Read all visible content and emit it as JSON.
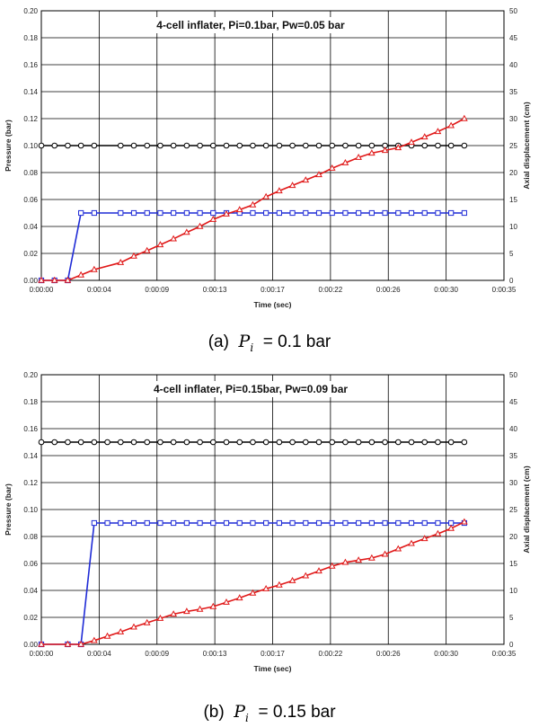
{
  "chart_data": [
    {
      "type": "line",
      "title": "4-cell inflater, Pi=0.1bar, Pw=0.05 bar",
      "xlabel": "Time (sec)",
      "ylabel": "Pressure (bar)",
      "y2label": "Axial displacement (cm)",
      "x_ticks": [
        "0:00:00",
        "0:00:04",
        "0:00:09",
        "0:00:13",
        "0:00:17",
        "0:00:22",
        "0:00:26",
        "0:00:30",
        "0:00:35"
      ],
      "y_ticks": [
        "0.00",
        "0.02",
        "0.04",
        "0.06",
        "0.08",
        "0.10",
        "0.12",
        "0.14",
        "0.16",
        "0.18",
        "0.20"
      ],
      "y2_ticks": [
        "0",
        "5",
        "10",
        "15",
        "20",
        "25",
        "30",
        "35",
        "40",
        "45",
        "50"
      ],
      "xlim": [
        0,
        35
      ],
      "ylim": [
        0,
        0.2
      ],
      "y2lim": [
        0,
        50
      ],
      "grid": true,
      "series": [
        {
          "color": "#000000",
          "marker": "circle",
          "axis": "left",
          "x": [
            0,
            1,
            2,
            3,
            4,
            6,
            7,
            8,
            9,
            10,
            11,
            12,
            13,
            14,
            15,
            16,
            17,
            18,
            19,
            20,
            21,
            22,
            23,
            24,
            25,
            26,
            27,
            28,
            29,
            30,
            31,
            32
          ],
          "y": [
            0.1,
            0.1,
            0.1,
            0.1,
            0.1,
            0.1,
            0.1,
            0.1,
            0.1,
            0.1,
            0.1,
            0.1,
            0.1,
            0.1,
            0.1,
            0.1,
            0.1,
            0.1,
            0.1,
            0.1,
            0.1,
            0.1,
            0.1,
            0.1,
            0.1,
            0.1,
            0.1,
            0.1,
            0.1,
            0.1,
            0.1,
            0.1
          ]
        },
        {
          "color": "#1f2bd6",
          "marker": "square",
          "axis": "left",
          "x": [
            0,
            1,
            2,
            3,
            4,
            6,
            7,
            8,
            9,
            10,
            11,
            12,
            13,
            14,
            15,
            16,
            17,
            18,
            19,
            20,
            21,
            22,
            23,
            24,
            25,
            26,
            27,
            28,
            29,
            30,
            31,
            32
          ],
          "y": [
            0,
            0,
            0,
            0.05,
            0.05,
            0.05,
            0.05,
            0.05,
            0.05,
            0.05,
            0.05,
            0.05,
            0.05,
            0.05,
            0.05,
            0.05,
            0.05,
            0.05,
            0.05,
            0.05,
            0.05,
            0.05,
            0.05,
            0.05,
            0.05,
            0.05,
            0.05,
            0.05,
            0.05,
            0.05,
            0.05,
            0.05
          ]
        },
        {
          "color": "#e01818",
          "marker": "triangle",
          "axis": "right",
          "x": [
            0,
            1,
            2,
            3,
            4,
            6,
            7,
            8,
            9,
            10,
            11,
            12,
            13,
            14,
            15,
            16,
            17,
            18,
            19,
            20,
            21,
            22,
            23,
            24,
            25,
            26,
            27,
            28,
            29,
            30,
            31,
            32
          ],
          "y": [
            0,
            0,
            0,
            1,
            2,
            3.3,
            4.5,
            5.5,
            6.6,
            7.7,
            8.9,
            10,
            11.3,
            12.3,
            13.1,
            14,
            15.5,
            16.6,
            17.6,
            18.6,
            19.6,
            20.8,
            21.8,
            22.8,
            23.6,
            24.1,
            24.6,
            25.6,
            26.6,
            27.6,
            28.7,
            30
          ]
        }
      ]
    },
    {
      "type": "line",
      "title": "4-cell inflater, Pi=0.15bar, Pw=0.09 bar",
      "xlabel": "Time (sec)",
      "ylabel": "Pressure (bar)",
      "y2label": "Axial displacement (cm)",
      "x_ticks": [
        "0:00:00",
        "0:00:04",
        "0:00:09",
        "0:00:13",
        "0:00:17",
        "0:00:22",
        "0:00:26",
        "0:00:30",
        "0:00:35"
      ],
      "y_ticks": [
        "0.00",
        "0.02",
        "0.04",
        "0.06",
        "0.08",
        "0.10",
        "0.12",
        "0.14",
        "0.16",
        "0.18",
        "0.20"
      ],
      "y2_ticks": [
        "0",
        "5",
        "10",
        "15",
        "20",
        "25",
        "30",
        "35",
        "40",
        "45",
        "50"
      ],
      "xlim": [
        0,
        35
      ],
      "ylim": [
        0,
        0.2
      ],
      "y2lim": [
        0,
        50
      ],
      "grid": true,
      "series": [
        {
          "color": "#000000",
          "marker": "circle",
          "axis": "left",
          "x": [
            0,
            1,
            2,
            3,
            4,
            5,
            6,
            7,
            8,
            9,
            10,
            11,
            12,
            13,
            14,
            15,
            16,
            17,
            18,
            19,
            20,
            21,
            22,
            23,
            24,
            25,
            26,
            27,
            28,
            29,
            30,
            31,
            32
          ],
          "y": [
            0.15,
            0.15,
            0.15,
            0.15,
            0.15,
            0.15,
            0.15,
            0.15,
            0.15,
            0.15,
            0.15,
            0.15,
            0.15,
            0.15,
            0.15,
            0.15,
            0.15,
            0.15,
            0.15,
            0.15,
            0.15,
            0.15,
            0.15,
            0.15,
            0.15,
            0.15,
            0.15,
            0.15,
            0.15,
            0.15,
            0.15,
            0.15,
            0.15
          ]
        },
        {
          "color": "#1f2bd6",
          "marker": "square",
          "axis": "left",
          "x": [
            0,
            2,
            3,
            4,
            5,
            6,
            7,
            8,
            9,
            10,
            11,
            12,
            13,
            14,
            15,
            16,
            17,
            18,
            19,
            20,
            21,
            22,
            23,
            24,
            25,
            26,
            27,
            28,
            29,
            30,
            31,
            32
          ],
          "y": [
            0,
            0,
            0,
            0.09,
            0.09,
            0.09,
            0.09,
            0.09,
            0.09,
            0.09,
            0.09,
            0.09,
            0.09,
            0.09,
            0.09,
            0.09,
            0.09,
            0.09,
            0.09,
            0.09,
            0.09,
            0.09,
            0.09,
            0.09,
            0.09,
            0.09,
            0.09,
            0.09,
            0.09,
            0.09,
            0.09,
            0.09
          ]
        },
        {
          "color": "#e01818",
          "marker": "triangle",
          "axis": "right",
          "x": [
            0,
            2,
            3,
            4,
            5,
            6,
            7,
            8,
            9,
            10,
            11,
            12,
            13,
            14,
            15,
            16,
            17,
            18,
            19,
            20,
            21,
            22,
            23,
            24,
            25,
            26,
            27,
            28,
            29,
            30,
            31,
            32
          ],
          "y": [
            0,
            0,
            0,
            0.7,
            1.5,
            2.3,
            3.2,
            4,
            4.8,
            5.6,
            6.1,
            6.5,
            7,
            7.8,
            8.6,
            9.5,
            10.3,
            11,
            11.8,
            12.7,
            13.6,
            14.5,
            15.2,
            15.6,
            16,
            16.7,
            17.7,
            18.7,
            19.6,
            20.5,
            21.5,
            22.7
          ]
        }
      ]
    }
  ],
  "captions": {
    "a": {
      "prefix": "(a)",
      "symbol": "P",
      "subscript": "i",
      "value": "=  0.1  bar"
    },
    "b": {
      "prefix": "(b)",
      "symbol": "P",
      "subscript": "i",
      "value": "=  0.15  bar"
    }
  }
}
